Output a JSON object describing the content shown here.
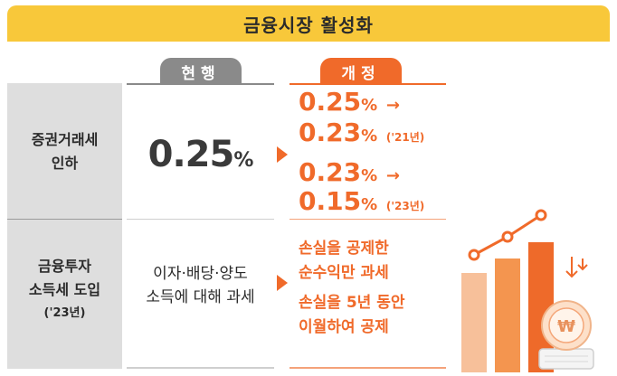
{
  "title": "금융시장 활성화",
  "header": {
    "current": "현행",
    "revised": "개정"
  },
  "rows": [
    {
      "label_line1": "증권거래세",
      "label_line2": "인하",
      "current_value": "0.25",
      "current_unit": "%",
      "revised": [
        {
          "from_value": "0.25",
          "unit": "%",
          "arrow": "→"
        },
        {
          "to_value": "0.23",
          "unit": "%",
          "year": "('21년)"
        },
        {
          "from_value": "0.23",
          "unit": "%",
          "arrow": "→"
        },
        {
          "to_value": "0.15",
          "unit": "%",
          "year": "('23년)"
        }
      ]
    },
    {
      "label_line1": "금융투자",
      "label_line2": "소득세 도입",
      "label_line3": "('23년)",
      "current_line1": "이자·배당·양도",
      "current_line2": "소득에 대해 과세",
      "revised_line1": "손실을 공제한",
      "revised_line2": "순수익만 과세",
      "revised_line3": "손실을 5년 동안",
      "revised_line4": "이월하여 공제"
    }
  ],
  "illustration": {
    "icon": "bar-chart-with-coin-icon",
    "coin_symbol": "₩",
    "colors": {
      "bar_light": "#f7c09a",
      "bar_mid": "#f4954f",
      "bar_dark": "#ee6a2a"
    }
  }
}
